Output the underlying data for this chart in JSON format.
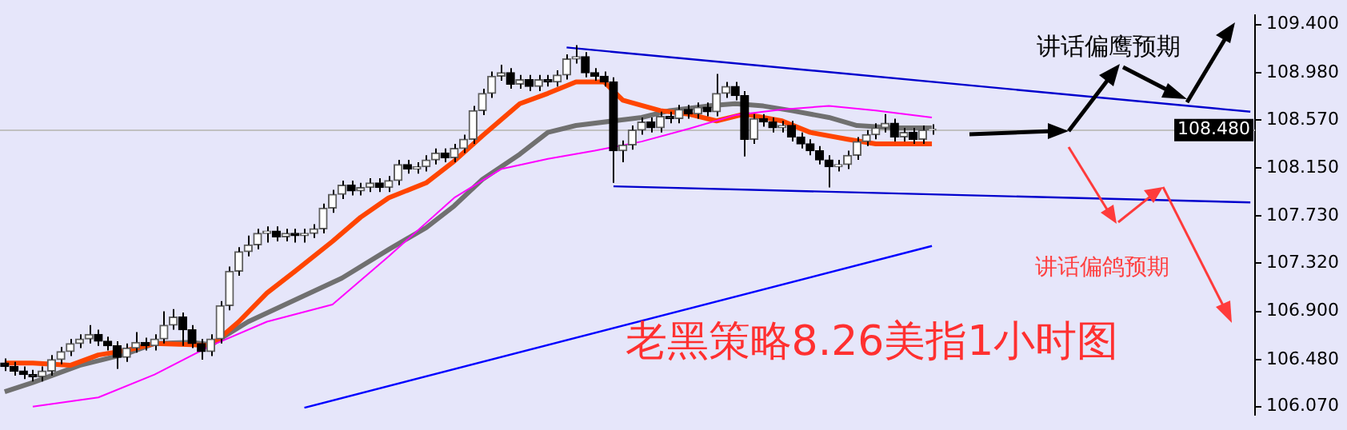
{
  "chart_data": {
    "type": "candlestick",
    "categories": [
      null,
      null,
      null,
      null,
      null,
      null,
      null,
      null,
      null,
      null,
      null,
      null,
      null,
      null,
      null,
      null,
      null,
      null,
      null,
      null,
      null,
      null,
      null,
      null,
      null,
      null,
      null,
      null,
      null,
      null,
      null,
      null,
      null,
      null,
      null,
      null,
      null,
      null,
      null,
      null,
      null,
      null,
      null,
      null,
      null,
      null,
      null,
      null,
      null,
      null,
      null,
      null,
      null,
      null,
      null,
      null,
      null,
      null,
      null,
      null,
      null,
      null,
      null,
      null,
      null,
      null,
      null,
      null,
      null,
      null,
      null,
      null,
      null,
      null,
      null,
      null,
      null,
      null,
      null,
      null,
      null,
      null,
      null,
      null,
      null,
      null,
      null,
      null,
      null,
      null,
      null,
      null,
      null,
      null,
      null,
      null,
      null,
      null,
      null,
      null,
      null,
      null,
      null,
      null,
      null,
      null,
      null,
      null,
      null,
      null,
      null,
      null,
      null,
      null,
      null,
      null,
      null,
      null,
      null,
      null,
      null,
      null,
      null,
      null,
      null,
      null,
      null,
      null,
      null,
      null,
      null,
      null,
      null,
      null
    ],
    "ohlc": [
      [
        106.45,
        106.49,
        106.38,
        106.42
      ],
      [
        106.42,
        106.46,
        106.34,
        106.38
      ],
      [
        106.38,
        106.42,
        106.31,
        106.35
      ],
      [
        106.35,
        106.39,
        106.29,
        106.33
      ],
      [
        106.33,
        106.42,
        106.29,
        106.38
      ],
      [
        106.38,
        106.52,
        106.34,
        106.48
      ],
      [
        106.48,
        106.59,
        106.44,
        106.55
      ],
      [
        106.55,
        106.66,
        106.51,
        106.62
      ],
      [
        106.62,
        106.7,
        106.58,
        106.66
      ],
      [
        106.66,
        106.78,
        106.62,
        106.7
      ],
      [
        106.7,
        106.74,
        106.6,
        106.64
      ],
      [
        106.64,
        106.68,
        106.56,
        106.6
      ],
      [
        106.6,
        106.64,
        106.4,
        106.5
      ],
      [
        106.5,
        106.62,
        106.46,
        106.58
      ],
      [
        106.58,
        106.72,
        106.54,
        106.63
      ],
      [
        106.63,
        106.67,
        106.56,
        106.6
      ],
      [
        106.6,
        106.7,
        106.56,
        106.66
      ],
      [
        106.66,
        106.9,
        106.62,
        106.78
      ],
      [
        106.78,
        106.92,
        106.74,
        106.85
      ],
      [
        106.85,
        106.89,
        106.6,
        106.74
      ],
      [
        106.74,
        106.78,
        106.58,
        106.62
      ],
      [
        106.62,
        106.66,
        106.48,
        106.55
      ],
      [
        106.55,
        106.7,
        106.51,
        106.66
      ],
      [
        106.66,
        106.99,
        106.62,
        106.95
      ],
      [
        106.95,
        107.29,
        106.91,
        107.25
      ],
      [
        107.25,
        107.46,
        107.21,
        107.42
      ],
      [
        107.42,
        107.56,
        107.38,
        107.48
      ],
      [
        107.48,
        107.62,
        107.44,
        107.58
      ],
      [
        107.58,
        107.64,
        107.5,
        107.6
      ],
      [
        107.6,
        107.64,
        107.51,
        107.55
      ],
      [
        107.55,
        107.62,
        107.51,
        107.58
      ],
      [
        107.58,
        107.62,
        107.5,
        107.56
      ],
      [
        107.56,
        107.62,
        107.5,
        107.58
      ],
      [
        107.58,
        107.66,
        107.54,
        107.62
      ],
      [
        107.62,
        107.84,
        107.58,
        107.8
      ],
      [
        107.8,
        107.96,
        107.76,
        107.92
      ],
      [
        107.92,
        108.04,
        107.88,
        108.0
      ],
      [
        108.0,
        108.04,
        107.91,
        107.95
      ],
      [
        107.95,
        108.02,
        107.91,
        107.98
      ],
      [
        107.98,
        108.06,
        107.94,
        108.02
      ],
      [
        108.02,
        108.06,
        107.94,
        107.98
      ],
      [
        107.98,
        108.08,
        107.94,
        108.04
      ],
      [
        108.04,
        108.22,
        108.0,
        108.18
      ],
      [
        108.18,
        108.22,
        108.1,
        108.14
      ],
      [
        108.14,
        108.2,
        108.1,
        108.16
      ],
      [
        108.16,
        108.26,
        108.12,
        108.22
      ],
      [
        108.22,
        108.32,
        108.18,
        108.28
      ],
      [
        108.28,
        108.32,
        108.2,
        108.24
      ],
      [
        108.24,
        108.36,
        108.2,
        108.32
      ],
      [
        108.32,
        108.44,
        108.28,
        108.4
      ],
      [
        108.4,
        108.69,
        108.36,
        108.65
      ],
      [
        108.65,
        108.84,
        108.61,
        108.8
      ],
      [
        108.8,
        108.99,
        108.76,
        108.95
      ],
      [
        108.95,
        109.05,
        108.91,
        108.98
      ],
      [
        108.98,
        109.02,
        108.84,
        108.88
      ],
      [
        108.88,
        108.96,
        108.84,
        108.92
      ],
      [
        108.92,
        108.96,
        108.82,
        108.86
      ],
      [
        108.86,
        108.96,
        108.82,
        108.92
      ],
      [
        108.92,
        108.96,
        108.86,
        108.9
      ],
      [
        108.9,
        109.0,
        108.86,
        108.96
      ],
      [
        108.96,
        109.14,
        108.92,
        109.1
      ],
      [
        109.1,
        109.22,
        109.06,
        109.12
      ],
      [
        109.12,
        109.16,
        108.94,
        108.98
      ],
      [
        108.98,
        109.02,
        108.91,
        108.95
      ],
      [
        108.95,
        108.99,
        108.86,
        108.9
      ],
      [
        108.9,
        108.94,
        108.02,
        108.3
      ],
      [
        108.3,
        108.39,
        108.2,
        108.35
      ],
      [
        108.35,
        108.52,
        108.31,
        108.48
      ],
      [
        108.48,
        108.59,
        108.44,
        108.55
      ],
      [
        108.55,
        108.59,
        108.46,
        108.5
      ],
      [
        108.5,
        108.64,
        108.46,
        108.6
      ],
      [
        108.6,
        108.64,
        108.54,
        108.58
      ],
      [
        108.58,
        108.7,
        108.54,
        108.66
      ],
      [
        108.66,
        108.7,
        108.58,
        108.62
      ],
      [
        108.62,
        108.72,
        108.58,
        108.68
      ],
      [
        108.68,
        108.72,
        108.6,
        108.64
      ],
      [
        108.64,
        108.97,
        108.6,
        108.8
      ],
      [
        108.8,
        108.9,
        108.76,
        108.86
      ],
      [
        108.86,
        108.9,
        108.74,
        108.78
      ],
      [
        108.78,
        108.82,
        108.25,
        108.4
      ],
      [
        108.4,
        108.62,
        108.36,
        108.58
      ],
      [
        108.58,
        108.62,
        108.51,
        108.55
      ],
      [
        108.55,
        108.59,
        108.46,
        108.5
      ],
      [
        108.5,
        108.56,
        108.46,
        108.52
      ],
      [
        108.52,
        108.56,
        108.38,
        108.42
      ],
      [
        108.42,
        108.46,
        108.32,
        108.36
      ],
      [
        108.36,
        108.4,
        108.26,
        108.3
      ],
      [
        108.3,
        108.34,
        108.18,
        108.22
      ],
      [
        108.22,
        108.26,
        107.98,
        108.16
      ],
      [
        108.16,
        108.22,
        108.12,
        108.18
      ],
      [
        108.18,
        108.3,
        108.14,
        108.26
      ],
      [
        108.26,
        108.42,
        108.22,
        108.38
      ],
      [
        108.38,
        108.48,
        108.34,
        108.44
      ],
      [
        108.44,
        108.54,
        108.4,
        108.5
      ],
      [
        108.5,
        108.62,
        108.46,
        108.54
      ],
      [
        108.54,
        108.58,
        108.38,
        108.42
      ],
      [
        108.42,
        108.5,
        108.38,
        108.46
      ],
      [
        108.46,
        108.5,
        108.36,
        108.4
      ],
      [
        108.4,
        108.52,
        108.36,
        108.48
      ],
      [
        108.48,
        108.53,
        108.44,
        108.49
      ],
      null,
      null,
      null,
      null,
      null,
      null,
      null,
      null,
      null,
      null,
      null,
      null,
      null,
      null,
      null,
      null,
      null,
      null,
      null,
      null,
      null,
      null,
      null,
      null,
      null,
      null,
      null,
      null,
      null,
      null,
      null,
      null,
      null,
      null
    ],
    "series": [
      {
        "type": "line",
        "color": "#ff4500",
        "values": [
          106.45,
          null,
          null,
          106.45,
          null,
          null,
          null,
          106.43,
          null,
          null,
          106.52,
          null,
          null,
          106.56,
          null,
          null,
          106.62,
          null,
          null,
          null,
          106.61,
          null,
          106.6,
          null,
          null,
          106.81,
          null,
          null,
          107.06,
          null,
          null,
          107.25,
          null,
          null,
          null,
          107.51,
          null,
          null,
          107.72,
          null,
          null,
          107.89,
          null,
          null,
          null,
          108.02,
          null,
          null,
          108.21,
          null,
          null,
          108.43,
          null,
          null,
          null,
          108.71,
          null,
          null,
          108.8,
          null,
          null,
          108.9,
          null,
          null,
          108.9,
          null,
          108.74,
          null,
          null,
          null,
          108.65,
          null,
          null,
          108.62,
          null,
          null,
          108.56,
          null,
          null,
          108.62,
          null,
          null,
          null,
          108.56,
          null,
          null,
          108.46,
          null,
          null,
          null,
          108.4,
          null,
          null,
          108.36,
          null,
          null,
          108.36,
          null,
          null,
          108.36,
          null,
          null,
          null,
          null,
          null,
          null,
          null,
          null,
          null,
          null,
          null,
          null,
          null,
          null,
          null,
          null,
          null,
          null,
          null,
          null,
          null,
          null,
          null,
          null,
          null,
          null,
          null,
          null,
          null,
          null,
          null,
          null,
          null,
          null
        ]
      },
      {
        "type": "line",
        "color": "#707070",
        "values": [
          106.2,
          null,
          null,
          106.28,
          null,
          null,
          null,
          null,
          106.43,
          null,
          null,
          null,
          null,
          106.53,
          null,
          null,
          106.62,
          null,
          null,
          null,
          106.63,
          null,
          106.61,
          null,
          null,
          null,
          106.81,
          null,
          null,
          null,
          null,
          107.0,
          null,
          null,
          null,
          null,
          107.19,
          null,
          null,
          null,
          null,
          107.44,
          null,
          null,
          null,
          107.63,
          null,
          null,
          107.82,
          null,
          null,
          108.05,
          null,
          null,
          null,
          108.27,
          null,
          null,
          108.46,
          null,
          null,
          108.52,
          null,
          null,
          null,
          108.56,
          null,
          null,
          108.59,
          null,
          null,
          108.65,
          null,
          null,
          null,
          108.69,
          null,
          null,
          108.71,
          null,
          null,
          108.69,
          null,
          null,
          108.65,
          null,
          null,
          null,
          108.59,
          null,
          null,
          108.52,
          null,
          null,
          null,
          108.5,
          null,
          null,
          null,
          108.5,
          null,
          null,
          null,
          null,
          null,
          null,
          null,
          null,
          null,
          null,
          null,
          null,
          null,
          null,
          null,
          null,
          null,
          null,
          null,
          null,
          null,
          null,
          null,
          null,
          null,
          null,
          null,
          null,
          null,
          null,
          null,
          null,
          null,
          null
        ]
      },
      {
        "type": "line",
        "color": "#ff00ff",
        "values": [
          null,
          null,
          null,
          106.07,
          null,
          null,
          null,
          null,
          null,
          null,
          106.15,
          null,
          null,
          null,
          null,
          null,
          106.35,
          null,
          null,
          null,
          null,
          null,
          106.6,
          null,
          null,
          null,
          null,
          null,
          106.81,
          null,
          null,
          null,
          null,
          null,
          null,
          106.96,
          null,
          null,
          null,
          null,
          null,
          107.38,
          null,
          null,
          null,
          null,
          null,
          null,
          107.89,
          null,
          null,
          null,
          null,
          108.14,
          null,
          null,
          null,
          null,
          108.23,
          null,
          null,
          null,
          null,
          108.3,
          null,
          null,
          null,
          null,
          108.38,
          null,
          null,
          null,
          null,
          108.49,
          null,
          null,
          null,
          null,
          108.61,
          null,
          null,
          null,
          null,
          108.66,
          null,
          null,
          null,
          null,
          108.69,
          null,
          null,
          null,
          null,
          108.65,
          null,
          null,
          null,
          null,
          null,
          108.59,
          null,
          null,
          null,
          null,
          null,
          null,
          null,
          null,
          null,
          null,
          null,
          null,
          null,
          null,
          null,
          null,
          null,
          null,
          null,
          null,
          null,
          null,
          null,
          null,
          null,
          null,
          null,
          null,
          null,
          null,
          null,
          null,
          null,
          null
        ]
      },
      {
        "type": "line",
        "color": "#0000ff",
        "values": [
          null,
          null,
          null,
          null,
          null,
          null,
          null,
          null,
          null,
          null,
          null,
          null,
          null,
          null,
          null,
          null,
          null,
          null,
          null,
          null,
          null,
          null,
          null,
          null,
          null,
          null,
          null,
          null,
          null,
          null,
          null,
          null,
          106.06,
          null,
          null,
          null,
          null,
          null,
          null,
          null,
          null,
          null,
          null,
          null,
          null,
          null,
          null,
          null,
          null,
          null,
          null,
          null,
          null,
          null,
          null,
          null,
          null,
          null,
          null,
          null,
          null,
          null,
          null,
          null,
          null,
          null,
          null,
          null,
          null,
          null,
          null,
          null,
          null,
          null,
          null,
          null,
          null,
          null,
          null,
          null,
          null,
          null,
          null,
          null,
          null,
          null,
          null,
          null,
          null,
          null,
          null,
          null,
          null,
          null,
          null,
          null,
          null,
          null,
          null,
          107.47,
          null,
          null,
          null,
          null,
          null,
          null,
          null,
          null,
          null,
          null,
          null,
          null,
          null,
          null,
          null,
          null,
          null,
          null,
          null,
          null,
          null,
          null,
          null,
          null,
          null,
          null,
          null,
          null,
          null,
          null,
          null,
          null,
          null,
          null
        ]
      },
      {
        "type": "line",
        "color": "#0000cd",
        "values": [
          null,
          null,
          null,
          null,
          null,
          null,
          null,
          null,
          null,
          null,
          null,
          null,
          null,
          null,
          null,
          null,
          null,
          null,
          null,
          null,
          null,
          null,
          null,
          null,
          null,
          null,
          null,
          null,
          null,
          null,
          null,
          null,
          null,
          null,
          null,
          null,
          null,
          null,
          null,
          null,
          null,
          null,
          null,
          null,
          null,
          null,
          null,
          null,
          null,
          null,
          null,
          null,
          null,
          null,
          null,
          null,
          null,
          null,
          null,
          null,
          109.2,
          null,
          null,
          null,
          null,
          null,
          null,
          null,
          null,
          null,
          null,
          null,
          null,
          null,
          null,
          null,
          null,
          null,
          null,
          null,
          null,
          null,
          null,
          null,
          null,
          null,
          null,
          null,
          null,
          null,
          null,
          null,
          null,
          null,
          null,
          null,
          null,
          null,
          null,
          null,
          null,
          null,
          null,
          null,
          null,
          null,
          null,
          null,
          null,
          null,
          null,
          null,
          null,
          null,
          null,
          null,
          null,
          null,
          null,
          null,
          null,
          null,
          null,
          null,
          null,
          null,
          null,
          null,
          null,
          null,
          null,
          null,
          null,
          108.64
        ]
      },
      {
        "type": "line",
        "color": "#0000cd",
        "values": [
          null,
          null,
          null,
          null,
          null,
          null,
          null,
          null,
          null,
          null,
          null,
          null,
          null,
          null,
          null,
          null,
          null,
          null,
          null,
          null,
          null,
          null,
          null,
          null,
          null,
          null,
          null,
          null,
          null,
          null,
          null,
          null,
          null,
          null,
          null,
          null,
          null,
          null,
          null,
          null,
          null,
          null,
          null,
          null,
          null,
          null,
          null,
          null,
          null,
          null,
          null,
          null,
          null,
          null,
          null,
          null,
          null,
          null,
          null,
          null,
          null,
          null,
          null,
          null,
          null,
          107.99,
          null,
          null,
          null,
          null,
          null,
          null,
          null,
          null,
          null,
          null,
          null,
          null,
          null,
          null,
          null,
          null,
          null,
          null,
          null,
          null,
          null,
          null,
          null,
          null,
          null,
          null,
          null,
          null,
          null,
          null,
          null,
          null,
          null,
          null,
          null,
          null,
          null,
          null,
          null,
          null,
          null,
          null,
          null,
          null,
          null,
          null,
          null,
          null,
          null,
          null,
          null,
          null,
          null,
          null,
          null,
          null,
          null,
          null,
          null,
          null,
          null,
          null,
          null,
          null,
          null,
          null,
          null,
          107.85
        ]
      }
    ],
    "ylim": [
      106.0,
      109.48
    ],
    "yticks": [
      {
        "value": 109.4,
        "label": "109.400"
      },
      {
        "value": 108.98,
        "label": "108.980"
      },
      {
        "value": 108.57,
        "label": "108.570"
      },
      {
        "value": 108.15,
        "label": "108.150"
      },
      {
        "value": 107.73,
        "label": "107.730"
      },
      {
        "value": 107.32,
        "label": "107.320"
      },
      {
        "value": 106.9,
        "label": "106.900"
      },
      {
        "value": 106.48,
        "label": "106.480"
      },
      {
        "value": 106.07,
        "label": "106.070"
      }
    ],
    "tick_labels": "y",
    "grid": false,
    "legend": false,
    "marker": "none",
    "ref_lines": [
      {
        "axis": "y",
        "value": 108.48,
        "label": "108.480",
        "color": "#c0c0c0"
      }
    ],
    "annotations": [
      "讲话偏鹰预期",
      "讲话偏鸽预期",
      "老黑策略8.26美指1小时图"
    ]
  }
}
